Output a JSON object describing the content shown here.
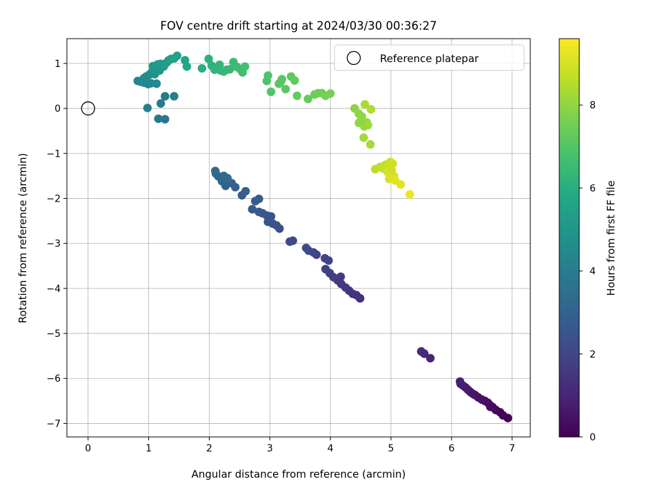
{
  "chart_data": {
    "type": "scatter",
    "title": "FOV centre drift starting at 2024/03/30 00:36:27",
    "xlabel": "Angular distance from reference (arcmin)",
    "ylabel": "Rotation from reference (arcmin)",
    "xlim": [
      -0.35,
      7.3
    ],
    "ylim": [
      -7.3,
      1.55
    ],
    "xticks": [
      "0",
      "1",
      "2",
      "3",
      "4",
      "5",
      "6",
      "7"
    ],
    "yticks": [
      "−7",
      "−6",
      "−5",
      "−4",
      "−3",
      "−2",
      "−1",
      "0",
      "1"
    ],
    "grid": true,
    "legend": {
      "position": "top-right",
      "label": "Reference platepar"
    },
    "reference_point": {
      "x": 0,
      "y": 0
    },
    "colorbar": {
      "label": "Hours from first FF file",
      "range": [
        0,
        9.6
      ],
      "ticks": [
        "0",
        "2",
        "4",
        "6",
        "8"
      ],
      "colormap": "viridis"
    },
    "series": [
      {
        "points": [
          [
            6.93,
            -6.88
          ],
          [
            6.85,
            -6.82
          ],
          [
            6.8,
            -6.75
          ],
          [
            6.73,
            -6.7
          ],
          [
            6.68,
            -6.64
          ],
          [
            6.64,
            -6.6
          ],
          [
            6.6,
            -6.54
          ],
          [
            6.55,
            -6.5
          ],
          [
            6.5,
            -6.47
          ],
          [
            6.44,
            -6.42
          ],
          [
            6.39,
            -6.37
          ],
          [
            6.35,
            -6.34
          ],
          [
            6.31,
            -6.3
          ],
          [
            6.27,
            -6.25
          ],
          [
            6.23,
            -6.2
          ],
          [
            6.19,
            -6.16
          ],
          [
            6.15,
            -6.12
          ],
          [
            6.14,
            -6.07
          ],
          [
            6.64,
            -6.63
          ]
        ],
        "hours": [
          0.0,
          0.05,
          0.1,
          0.15,
          0.2,
          0.25,
          0.3,
          0.35,
          0.4,
          0.45,
          0.5,
          0.55,
          0.6,
          0.65,
          0.7,
          0.75,
          0.8,
          0.85,
          0.3
        ]
      },
      {
        "points": [
          [
            5.65,
            -5.55
          ],
          [
            5.55,
            -5.45
          ],
          [
            5.5,
            -5.4
          ]
        ],
        "hours": [
          1.0,
          1.05,
          1.1
        ]
      },
      {
        "points": [
          [
            4.49,
            -4.22
          ],
          [
            4.43,
            -4.15
          ],
          [
            4.37,
            -4.12
          ],
          [
            4.31,
            -4.05
          ],
          [
            4.25,
            -3.98
          ],
          [
            4.18,
            -3.9
          ],
          [
            4.12,
            -3.82
          ],
          [
            4.17,
            -3.74
          ],
          [
            4.05,
            -3.75
          ],
          [
            3.99,
            -3.66
          ],
          [
            3.92,
            -3.57
          ],
          [
            3.97,
            -3.38
          ],
          [
            3.91,
            -3.33
          ],
          [
            3.77,
            -3.25
          ],
          [
            3.72,
            -3.2
          ],
          [
            3.64,
            -3.16
          ],
          [
            3.6,
            -3.1
          ],
          [
            3.38,
            -2.94
          ],
          [
            3.33,
            -2.96
          ]
        ],
        "hours": [
          1.3,
          1.35,
          1.4,
          1.45,
          1.5,
          1.55,
          1.6,
          1.65,
          1.7,
          1.75,
          1.8,
          1.85,
          1.9,
          1.95,
          2.0,
          2.05,
          2.1,
          2.15,
          2.2
        ]
      },
      {
        "points": [
          [
            3.16,
            -2.67
          ],
          [
            3.11,
            -2.6
          ],
          [
            3.05,
            -2.56
          ],
          [
            2.97,
            -2.52
          ],
          [
            3.02,
            -2.4
          ],
          [
            2.95,
            -2.38
          ],
          [
            2.88,
            -2.33
          ],
          [
            2.82,
            -2.3
          ],
          [
            2.71,
            -2.24
          ],
          [
            2.76,
            -2.06
          ],
          [
            2.82,
            -2.01
          ],
          [
            2.54,
            -1.93
          ],
          [
            2.6,
            -1.84
          ],
          [
            2.43,
            -1.75
          ],
          [
            2.37,
            -1.66
          ],
          [
            2.27,
            -1.72
          ],
          [
            2.21,
            -1.62
          ],
          [
            2.15,
            -1.51
          ],
          [
            2.11,
            -1.45
          ],
          [
            2.1,
            -1.39
          ],
          [
            2.24,
            -1.5
          ],
          [
            2.3,
            -1.55
          ]
        ],
        "hours": [
          2.3,
          2.35,
          2.4,
          2.45,
          2.5,
          2.55,
          2.6,
          2.65,
          2.7,
          2.75,
          2.8,
          2.85,
          2.9,
          2.95,
          3.0,
          3.05,
          3.1,
          3.15,
          3.2,
          3.25,
          3.3,
          3.35
        ]
      },
      {
        "points": [
          [
            1.27,
            -0.24
          ],
          [
            1.16,
            -0.23
          ],
          [
            1.2,
            0.11
          ],
          [
            1.27,
            0.27
          ],
          [
            1.42,
            0.27
          ],
          [
            0.98,
            0.01
          ]
        ],
        "hours": [
          3.8,
          3.85,
          3.9,
          4.0,
          4.1,
          4.2
        ]
      },
      {
        "points": [
          [
            0.82,
            0.61
          ],
          [
            0.88,
            0.59
          ],
          [
            0.93,
            0.57
          ],
          [
            0.99,
            0.54
          ],
          [
            1.04,
            0.56
          ],
          [
            1.13,
            0.55
          ],
          [
            0.92,
            0.67
          ],
          [
            0.96,
            0.71
          ],
          [
            1.01,
            0.75
          ],
          [
            1.05,
            0.8
          ],
          [
            1.09,
            0.83
          ],
          [
            1.12,
            0.86
          ],
          [
            1.16,
            0.9
          ],
          [
            1.19,
            0.93
          ],
          [
            1.22,
            0.95
          ],
          [
            1.26,
            0.98
          ],
          [
            1.3,
            1.02
          ],
          [
            1.07,
            0.94
          ],
          [
            1.15,
            0.98
          ],
          [
            1.2,
            0.99
          ],
          [
            1.25,
            0.93
          ],
          [
            1.33,
            1.07
          ],
          [
            1.37,
            1.1
          ],
          [
            1.42,
            1.11
          ],
          [
            1.47,
            1.17
          ],
          [
            1.6,
            1.07
          ],
          [
            1.63,
            0.93
          ],
          [
            1.1,
            0.76
          ],
          [
            1.18,
            0.84
          ]
        ],
        "hours": [
          4.3,
          4.35,
          4.4,
          4.45,
          4.5,
          4.55,
          4.6,
          4.65,
          4.7,
          4.75,
          4.8,
          4.85,
          4.9,
          4.95,
          5.0,
          5.05,
          5.1,
          5.15,
          5.2,
          5.25,
          5.3,
          5.35,
          5.4,
          5.45,
          5.5,
          5.6,
          5.7,
          4.9,
          5.0
        ]
      },
      {
        "points": [
          [
            1.88,
            0.89
          ],
          [
            1.99,
            1.1
          ],
          [
            2.04,
            0.95
          ],
          [
            2.09,
            0.86
          ],
          [
            2.14,
            0.91
          ],
          [
            2.19,
            0.84
          ],
          [
            2.24,
            0.82
          ],
          [
            2.29,
            0.86
          ],
          [
            2.34,
            0.87
          ],
          [
            2.4,
            1.03
          ],
          [
            2.46,
            0.92
          ],
          [
            2.51,
            0.87
          ],
          [
            2.55,
            0.8
          ],
          [
            2.59,
            0.93
          ],
          [
            2.17,
            0.97
          ]
        ],
        "hours": [
          6.0,
          6.1,
          6.15,
          6.2,
          6.25,
          6.3,
          6.35,
          6.4,
          6.45,
          6.5,
          6.55,
          6.6,
          6.65,
          6.7,
          6.25
        ]
      },
      {
        "points": [
          [
            2.95,
            0.61
          ],
          [
            2.97,
            0.73
          ],
          [
            3.02,
            0.37
          ],
          [
            3.15,
            0.55
          ],
          [
            3.2,
            0.65
          ],
          [
            3.26,
            0.43
          ],
          [
            3.35,
            0.71
          ],
          [
            3.41,
            0.62
          ],
          [
            3.45,
            0.28
          ],
          [
            3.63,
            0.21
          ],
          [
            3.74,
            0.31
          ],
          [
            3.8,
            0.34
          ],
          [
            3.86,
            0.34
          ],
          [
            3.92,
            0.28
          ],
          [
            4.0,
            0.33
          ],
          [
            3.18,
            0.59
          ]
        ],
        "hours": [
          6.9,
          6.95,
          7.0,
          7.05,
          7.1,
          7.15,
          7.2,
          7.25,
          7.3,
          7.35,
          7.4,
          7.45,
          7.5,
          7.55,
          7.6,
          7.1
        ]
      },
      {
        "points": [
          [
            4.4,
            0.0
          ],
          [
            4.47,
            -0.12
          ],
          [
            4.52,
            -0.18
          ],
          [
            4.47,
            -0.32
          ],
          [
            4.56,
            -0.4
          ],
          [
            4.6,
            -0.31
          ],
          [
            4.62,
            -0.37
          ],
          [
            4.55,
            -0.65
          ],
          [
            4.66,
            -0.8
          ],
          [
            4.57,
            0.09
          ],
          [
            4.67,
            -0.02
          ],
          [
            4.5,
            -0.28
          ]
        ],
        "hours": [
          7.9,
          7.95,
          8.0,
          8.05,
          8.1,
          8.15,
          8.2,
          8.25,
          8.3,
          8.35,
          8.4,
          8.0
        ]
      },
      {
        "points": [
          [
            4.74,
            -1.35
          ],
          [
            4.82,
            -1.3
          ],
          [
            4.86,
            -1.33
          ],
          [
            4.91,
            -1.25
          ],
          [
            4.96,
            -1.28
          ],
          [
            4.99,
            -1.19
          ],
          [
            5.03,
            -1.23
          ],
          [
            4.94,
            -1.41
          ],
          [
            4.98,
            -1.48
          ],
          [
            5.05,
            -1.5
          ],
          [
            4.97,
            -1.57
          ],
          [
            5.07,
            -1.6
          ],
          [
            5.16,
            -1.69
          ],
          [
            5.31,
            -1.91
          ],
          [
            5.01,
            -1.37
          ]
        ],
        "hours": [
          8.6,
          8.65,
          8.7,
          8.75,
          8.8,
          8.85,
          8.9,
          8.95,
          9.0,
          9.05,
          9.1,
          9.15,
          9.2,
          9.4,
          8.9
        ]
      }
    ]
  }
}
